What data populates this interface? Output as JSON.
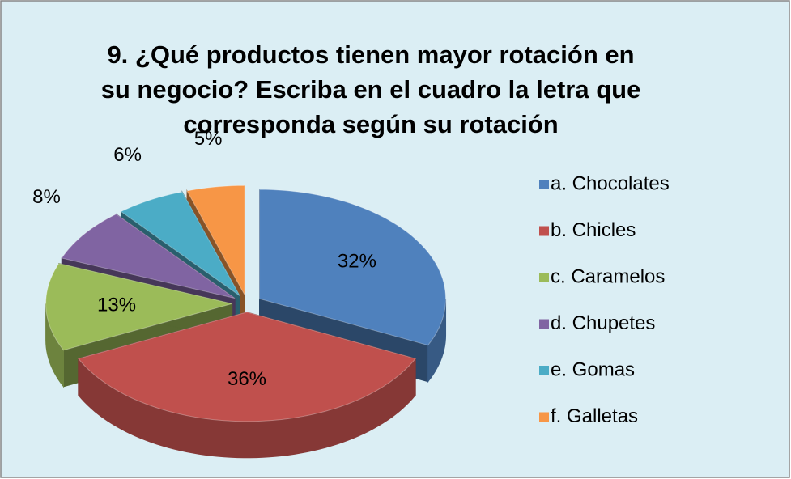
{
  "chart_data": {
    "type": "pie3d",
    "title": [
      "9. ¿Qué productos tienen mayor rotación en",
      "su negocio? Escriba en el cuadro la letra que",
      "corresponda según su rotación"
    ],
    "categories": [
      "a. Chocolates",
      "b. Chicles",
      "c. Caramelos",
      "d. Chupetes",
      "e. Gomas",
      "f. Galletas"
    ],
    "values": [
      32,
      36,
      13,
      8,
      6,
      5
    ],
    "value_labels": [
      "32%",
      "36%",
      "13%",
      "8%",
      "6%",
      "5%"
    ],
    "colors": [
      "#4f81bd",
      "#c0504d",
      "#9bbb59",
      "#8064a2",
      "#4bacc6",
      "#f79646"
    ],
    "legend": "right"
  }
}
